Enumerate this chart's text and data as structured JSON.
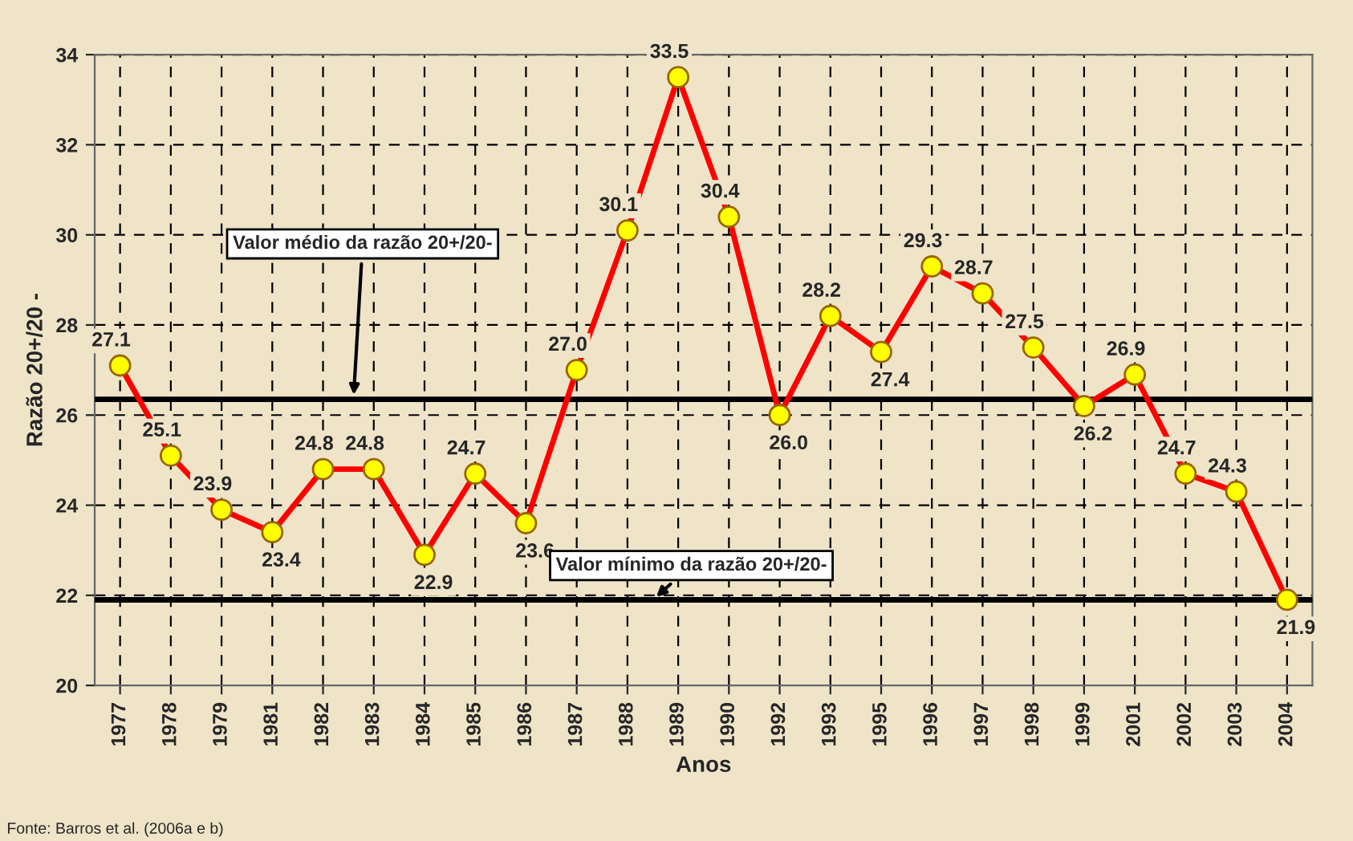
{
  "chart_data": {
    "type": "line",
    "xlabel": "Anos",
    "ylabel": "Razão 20+/20 -",
    "categories": [
      "1977",
      "1978",
      "1979",
      "1981",
      "1982",
      "1983",
      "1984",
      "1985",
      "1986",
      "1987",
      "1988",
      "1989",
      "1990",
      "1992",
      "1993",
      "1995",
      "1996",
      "1997",
      "1998",
      "1999",
      "2001",
      "2002",
      "2003",
      "2004"
    ],
    "series": [
      {
        "color": "#ff0000",
        "values": [
          27.1,
          25.1,
          23.9,
          23.4,
          24.8,
          24.8,
          22.9,
          24.7,
          23.6,
          27.0,
          30.1,
          33.5,
          30.4,
          26.0,
          28.2,
          27.4,
          29.3,
          28.7,
          27.5,
          26.2,
          26.9,
          24.7,
          24.3,
          21.9
        ]
      }
    ],
    "ylim": [
      20,
      34
    ],
    "yticks": [
      20,
      22,
      24,
      26,
      28,
      30,
      32,
      34
    ],
    "value_labels": [
      "27.1",
      "25.1",
      "23.9",
      "23.4",
      "24.8",
      "24.8",
      "22.9",
      "24.7",
      "23.6",
      "27.0",
      "30.1",
      "33.5",
      "30.4",
      "26.0",
      "28.2",
      "27.4",
      "29.3",
      "28.7",
      "27.5",
      "26.2",
      "26.9",
      "24.7",
      "24.3",
      "21.9"
    ],
    "grid": true,
    "marker": "circle",
    "line_style": "solid",
    "legend": false,
    "ref_lines": [
      {
        "axis": "y",
        "value": 26.35,
        "label": "Valor médio da razão 20+/20-",
        "color": "#000000"
      },
      {
        "axis": "y",
        "value": 21.9,
        "label": "Valor mínimo da razão 20+/20-",
        "color": "#000000"
      }
    ],
    "annotations": [
      "Fonte: Barros et al. (2006a e b)"
    ]
  }
}
